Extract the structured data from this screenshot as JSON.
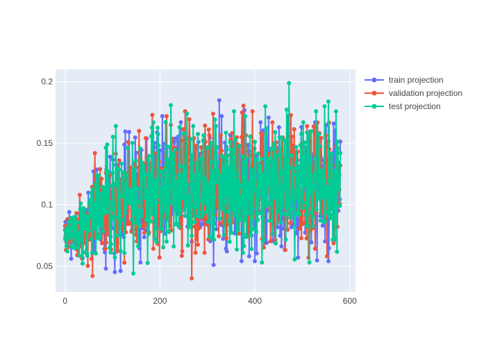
{
  "chart_data": {
    "type": "line",
    "mode": "lines+markers",
    "title": "",
    "xlabel": "",
    "ylabel": "",
    "xlim": [
      -20,
      612
    ],
    "ylim": [
      0.029,
      0.21
    ],
    "x_ticks": [
      0,
      200,
      400,
      600
    ],
    "x_tick_labels": [
      "0",
      "200",
      "400",
      "600"
    ],
    "y_ticks": [
      0.05,
      0.1,
      0.15,
      0.2
    ],
    "y_tick_labels": [
      "0.05",
      "0.1",
      "0.15",
      "0.2"
    ],
    "grid": true,
    "legend_position": "top-right",
    "background_color": "#E5ECF6",
    "x_range_points": [
      0,
      580
    ],
    "series": [
      {
        "name": "train projection",
        "color": "#636EFA",
        "anchors": [
          [
            0,
            0.078
          ],
          [
            20,
            0.075
          ],
          [
            40,
            0.083
          ],
          [
            60,
            0.09
          ],
          [
            80,
            0.095
          ],
          [
            100,
            0.1
          ],
          [
            120,
            0.105
          ],
          [
            140,
            0.108
          ],
          [
            160,
            0.11
          ],
          [
            180,
            0.112
          ],
          [
            200,
            0.113
          ],
          [
            250,
            0.115
          ],
          [
            300,
            0.116
          ],
          [
            350,
            0.117
          ],
          [
            400,
            0.118
          ],
          [
            450,
            0.118
          ],
          [
            500,
            0.118
          ],
          [
            550,
            0.118
          ],
          [
            580,
            0.118
          ]
        ],
        "amp_anchors": [
          [
            0,
            0.006
          ],
          [
            30,
            0.012
          ],
          [
            60,
            0.022
          ],
          [
            100,
            0.028
          ],
          [
            150,
            0.03
          ],
          [
            200,
            0.03
          ],
          [
            300,
            0.031
          ],
          [
            400,
            0.032
          ],
          [
            500,
            0.032
          ],
          [
            580,
            0.032
          ]
        ],
        "points": [
          [
            1,
            0.086
          ],
          [
            9,
            0.094
          ],
          [
            13,
            0.056
          ],
          [
            30,
            0.093
          ],
          [
            59,
            0.063
          ],
          [
            72,
            0.12
          ],
          [
            86,
            0.048
          ],
          [
            95,
            0.139
          ],
          [
            102,
            0.095
          ],
          [
            125,
            0.149
          ],
          [
            159,
            0.053
          ],
          [
            205,
            0.172
          ],
          [
            244,
            0.167
          ],
          [
            281,
            0.151
          ],
          [
            313,
            0.051
          ],
          [
            330,
            0.172
          ],
          [
            341,
            0.062
          ],
          [
            378,
            0.177
          ],
          [
            388,
            0.058
          ],
          [
            412,
            0.167
          ],
          [
            425,
            0.069
          ],
          [
            451,
            0.163
          ],
          [
            470,
            0.172
          ],
          [
            491,
            0.057
          ],
          [
            527,
            0.167
          ],
          [
            555,
            0.054
          ],
          [
            566,
            0.166
          ],
          [
            578,
            0.099
          ]
        ]
      },
      {
        "name": "validation projection",
        "color": "#EF553B",
        "anchors": [
          [
            0,
            0.075
          ],
          [
            20,
            0.076
          ],
          [
            40,
            0.082
          ],
          [
            60,
            0.088
          ],
          [
            80,
            0.094
          ],
          [
            100,
            0.098
          ],
          [
            120,
            0.103
          ],
          [
            140,
            0.107
          ],
          [
            160,
            0.109
          ],
          [
            180,
            0.111
          ],
          [
            200,
            0.112
          ],
          [
            250,
            0.114
          ],
          [
            300,
            0.115
          ],
          [
            350,
            0.116
          ],
          [
            400,
            0.117
          ],
          [
            450,
            0.117
          ],
          [
            500,
            0.117
          ],
          [
            550,
            0.117
          ],
          [
            580,
            0.117
          ]
        ],
        "amp_anchors": [
          [
            0,
            0.007
          ],
          [
            30,
            0.013
          ],
          [
            60,
            0.023
          ],
          [
            100,
            0.029
          ],
          [
            150,
            0.031
          ],
          [
            200,
            0.031
          ],
          [
            300,
            0.032
          ],
          [
            400,
            0.033
          ],
          [
            500,
            0.033
          ],
          [
            580,
            0.033
          ]
        ],
        "points": [
          [
            2,
            0.063
          ],
          [
            22,
            0.078
          ],
          [
            31,
            0.108
          ],
          [
            36,
            0.056
          ],
          [
            58,
            0.042
          ],
          [
            63,
            0.142
          ],
          [
            74,
            0.129
          ],
          [
            85,
            0.064
          ],
          [
            109,
            0.062
          ],
          [
            136,
            0.121
          ],
          [
            156,
            0.16
          ],
          [
            184,
            0.173
          ],
          [
            199,
            0.057
          ],
          [
            214,
            0.172
          ],
          [
            253,
            0.176
          ],
          [
            267,
            0.04
          ],
          [
            276,
            0.148
          ],
          [
            312,
            0.174
          ],
          [
            349,
            0.153
          ],
          [
            373,
            0.175
          ],
          [
            395,
            0.176
          ],
          [
            415,
            0.072
          ],
          [
            437,
            0.167
          ],
          [
            481,
            0.148
          ],
          [
            526,
            0.161
          ],
          [
            574,
            0.082
          ]
        ]
      },
      {
        "name": "test projection",
        "color": "#00CC96",
        "anchors": [
          [
            0,
            0.076
          ],
          [
            20,
            0.077
          ],
          [
            40,
            0.084
          ],
          [
            60,
            0.09
          ],
          [
            80,
            0.096
          ],
          [
            100,
            0.1
          ],
          [
            120,
            0.104
          ],
          [
            140,
            0.108
          ],
          [
            160,
            0.11
          ],
          [
            180,
            0.112
          ],
          [
            200,
            0.113
          ],
          [
            250,
            0.115
          ],
          [
            300,
            0.116
          ],
          [
            350,
            0.117
          ],
          [
            400,
            0.118
          ],
          [
            450,
            0.118
          ],
          [
            500,
            0.118
          ],
          [
            550,
            0.118
          ],
          [
            580,
            0.118
          ]
        ],
        "amp_anchors": [
          [
            0,
            0.006
          ],
          [
            30,
            0.012
          ],
          [
            60,
            0.022
          ],
          [
            100,
            0.029
          ],
          [
            150,
            0.031
          ],
          [
            200,
            0.031
          ],
          [
            300,
            0.032
          ],
          [
            400,
            0.033
          ],
          [
            500,
            0.033
          ],
          [
            580,
            0.033
          ]
        ],
        "points": [
          [
            0,
            0.072
          ],
          [
            5,
            0.062
          ],
          [
            37,
            0.052
          ],
          [
            67,
            0.124
          ],
          [
            89,
            0.149
          ],
          [
            96,
            0.061
          ],
          [
            107,
            0.164
          ],
          [
            144,
            0.044
          ],
          [
            176,
            0.076
          ],
          [
            223,
            0.181
          ],
          [
            241,
            0.163
          ],
          [
            270,
            0.164
          ],
          [
            318,
            0.164
          ],
          [
            356,
            0.176
          ],
          [
            380,
            0.172
          ],
          [
            393,
            0.064
          ],
          [
            422,
            0.18
          ],
          [
            443,
            0.159
          ],
          [
            472,
            0.199
          ],
          [
            502,
            0.167
          ],
          [
            515,
            0.053
          ],
          [
            529,
            0.176
          ],
          [
            547,
            0.18
          ],
          [
            555,
            0.184
          ],
          [
            571,
            0.176
          ],
          [
            575,
            0.146
          ]
        ]
      }
    ]
  }
}
